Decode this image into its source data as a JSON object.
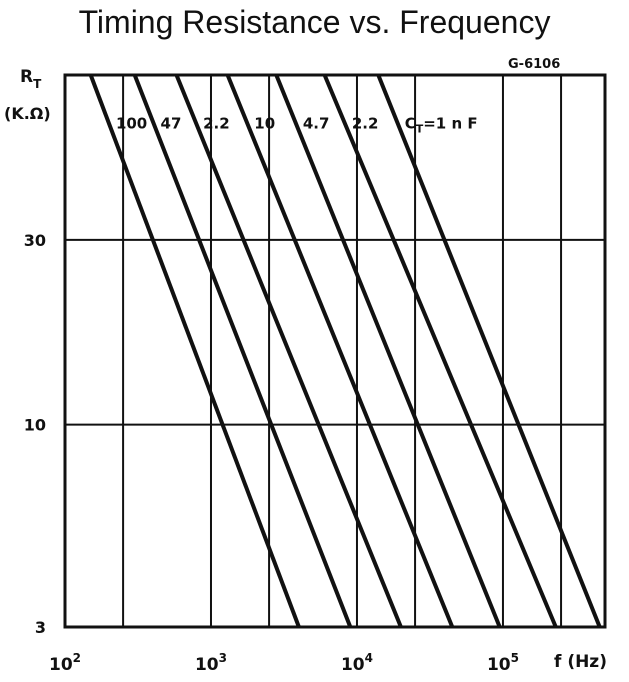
{
  "chart_data": {
    "type": "line",
    "title": "Timing Resistance vs. Frequency",
    "figure_code": "G-6106",
    "ylabel_top": "R",
    "ylabel_sub": "T",
    "ylabel_unit": "(K.Ω)",
    "xlabel": "f (Hz)",
    "x_scale": "log",
    "y_scale": "log",
    "xlim": [
      100,
      500000
    ],
    "ylim": [
      3,
      80
    ],
    "grid": true,
    "x_ticks": [
      {
        "value": 100,
        "base": "10",
        "exp": "2"
      },
      {
        "value": 1000,
        "base": "10",
        "exp": "3"
      },
      {
        "value": 10000,
        "base": "10",
        "exp": "4"
      },
      {
        "value": 100000,
        "base": "10",
        "exp": "5"
      }
    ],
    "x_grid": [
      250,
      1000,
      2500,
      10000,
      25000,
      100000,
      250000
    ],
    "y_ticks": [
      {
        "value": 3,
        "label": "3"
      },
      {
        "value": 10,
        "label": "10"
      },
      {
        "value": 30,
        "label": "30"
      }
    ],
    "series": [
      {
        "name": "100",
        "points": [
          [
            150,
            80
          ],
          [
            4000,
            3
          ]
        ]
      },
      {
        "name": "47",
        "points": [
          [
            300,
            80
          ],
          [
            9000,
            3
          ]
        ]
      },
      {
        "name": "2.2",
        "points": [
          [
            580,
            80
          ],
          [
            20000,
            3
          ]
        ]
      },
      {
        "name": "10",
        "points": [
          [
            1300,
            80
          ],
          [
            45000,
            3
          ]
        ]
      },
      {
        "name": "4.7",
        "points": [
          [
            2800,
            80
          ],
          [
            95000,
            3
          ]
        ]
      },
      {
        "name": "2.2",
        "points": [
          [
            6000,
            80
          ],
          [
            230000,
            3
          ]
        ]
      },
      {
        "name": "CT=1 nF",
        "label_main": "C",
        "label_sub": "T",
        "label_rest": "=1 n F",
        "points": [
          [
            14000,
            80
          ],
          [
            460000,
            3
          ]
        ]
      }
    ]
  }
}
